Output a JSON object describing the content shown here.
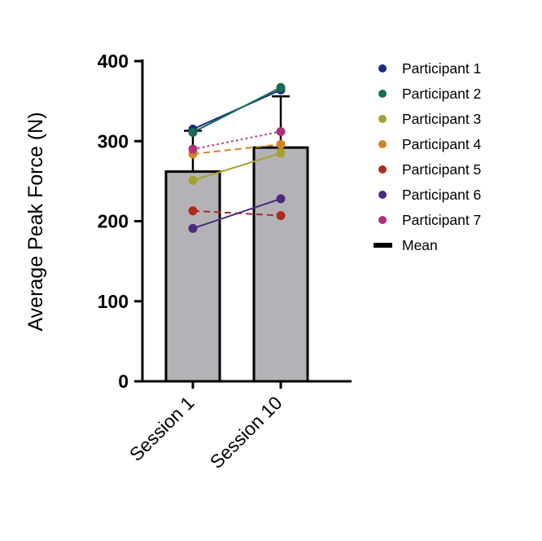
{
  "chart_data": {
    "type": "bar",
    "title": "",
    "xlabel": "",
    "ylabel": "Average Peak Force (N)",
    "ylim": [
      0,
      400
    ],
    "yticks": [
      0,
      100,
      200,
      300,
      400
    ],
    "categories": [
      "Session 1",
      "Session 10"
    ],
    "grid": false,
    "legend_position": "right",
    "bars": {
      "label": "Mean",
      "values": [
        262,
        292
      ],
      "error_upper": [
        313,
        356
      ],
      "fill": "#b5b2b7",
      "stroke": "#000000"
    },
    "series": [
      {
        "name": "Participant 1",
        "color": "#1c2d80",
        "line_style": "solid",
        "values": [
          315,
          364
        ]
      },
      {
        "name": "Participant 2",
        "color": "#176c52",
        "line_style": "solid",
        "values": [
          311,
          367
        ]
      },
      {
        "name": "Participant 3",
        "color": "#a4a12f",
        "line_style": "solid",
        "values": [
          251,
          285
        ]
      },
      {
        "name": "Participant 4",
        "color": "#d4831f",
        "line_style": "dashed",
        "values": [
          284,
          296
        ]
      },
      {
        "name": "Participant 5",
        "color": "#ad2b1d",
        "line_style": "dashed",
        "values": [
          213,
          207
        ]
      },
      {
        "name": "Participant 6",
        "color": "#4a2b7e",
        "line_style": "solid",
        "values": [
          191,
          228
        ]
      },
      {
        "name": "Participant 7",
        "color": "#b03179",
        "line_style": "dotted",
        "values": [
          290,
          312
        ]
      }
    ],
    "colors": {
      "axis": "#000000",
      "bar_fill": "#b5b2b7",
      "text": "#000000"
    }
  }
}
